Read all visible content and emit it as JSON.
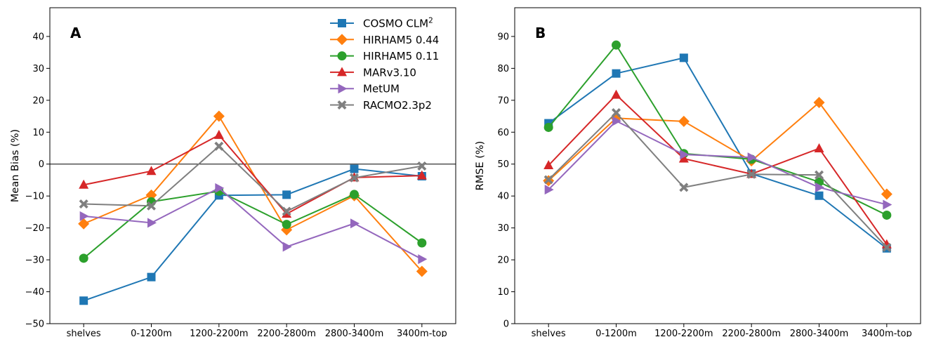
{
  "chart_data": [
    {
      "type": "line",
      "panel_label": "A",
      "ylabel": "Mean Bias (%)",
      "ylim": [
        -50,
        49
      ],
      "yticks": [
        -50,
        -40,
        -30,
        -20,
        -10,
        0,
        10,
        20,
        30,
        40
      ],
      "zero_line": true,
      "categories": [
        "shelves",
        "0-1200m",
        "1200-2200m",
        "2200-2800m",
        "2800-3400m",
        "3400m-top"
      ],
      "legend": true,
      "legend_position": "top-right",
      "series": [
        {
          "name": "COSMO CLM",
          "name_sup": "2",
          "color": "#1f77b4",
          "marker": "square",
          "values": [
            -42.8,
            -35.4,
            -9.8,
            -9.6,
            -1.5,
            -3.8
          ]
        },
        {
          "name": "HIRHAM5 0.44",
          "color": "#ff7f0e",
          "marker": "diamond",
          "values": [
            -18.7,
            -9.7,
            15.0,
            -20.6,
            -9.9,
            -33.6
          ]
        },
        {
          "name": "HIRHAM5 0.11",
          "color": "#2ca02c",
          "marker": "circle",
          "values": [
            -29.5,
            -11.8,
            -8.5,
            -18.9,
            -9.5,
            -24.7
          ]
        },
        {
          "name": "MARv3.10",
          "color": "#d62728",
          "marker": "triangle-up",
          "values": [
            -6.5,
            -2.2,
            9.1,
            -15.6,
            -4.2,
            -3.6
          ]
        },
        {
          "name": "MetUM",
          "color": "#9467bd",
          "marker": "triangle-right",
          "values": [
            -16.3,
            -18.4,
            -7.5,
            -25.9,
            -18.6,
            -29.8
          ]
        },
        {
          "name": "RACMO2.3p2",
          "color": "#7f7f7f",
          "marker": "x",
          "values": [
            -12.5,
            -13.1,
            5.6,
            -14.8,
            -4.3,
            -0.6
          ]
        }
      ]
    },
    {
      "type": "line",
      "panel_label": "B",
      "ylabel": "RMSE (%)",
      "ylim": [
        0,
        99
      ],
      "yticks": [
        0,
        10,
        20,
        30,
        40,
        50,
        60,
        70,
        80,
        90
      ],
      "zero_line": false,
      "categories": [
        "shelves",
        "0-1200m",
        "1200-2200m",
        "2200-2800m",
        "2800-3400m",
        "3400m-top"
      ],
      "legend": false,
      "series": [
        {
          "name": "COSMO CLM",
          "color": "#1f77b4",
          "marker": "square",
          "values": [
            62.8,
            78.4,
            83.3,
            47.0,
            40.1,
            23.6
          ]
        },
        {
          "name": "HIRHAM5 0.44",
          "color": "#ff7f0e",
          "marker": "diamond",
          "values": [
            44.8,
            64.4,
            63.4,
            51.0,
            69.3,
            40.6
          ]
        },
        {
          "name": "HIRHAM5 0.11",
          "color": "#2ca02c",
          "marker": "circle",
          "values": [
            61.5,
            87.3,
            53.3,
            51.5,
            44.4,
            34.0
          ]
        },
        {
          "name": "MARv3.10",
          "color": "#d62728",
          "marker": "triangle-up",
          "values": [
            49.6,
            71.7,
            51.7,
            46.9,
            54.9,
            24.8
          ]
        },
        {
          "name": "MetUM",
          "color": "#9467bd",
          "marker": "triangle-right",
          "values": [
            42.0,
            63.5,
            53.0,
            52.1,
            42.7,
            37.3
          ]
        },
        {
          "name": "RACMO2.3p2",
          "color": "#7f7f7f",
          "marker": "x",
          "values": [
            45.1,
            66.1,
            42.7,
            46.8,
            46.6,
            23.9
          ]
        }
      ]
    }
  ]
}
